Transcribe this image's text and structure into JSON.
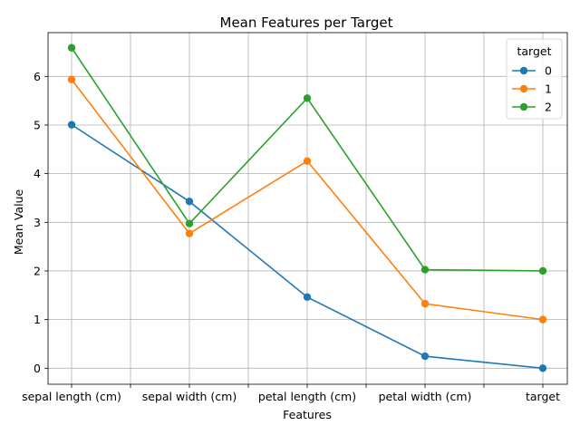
{
  "chart_data": {
    "type": "line",
    "title": "Mean Features per Target",
    "xlabel": "Features",
    "ylabel": "Mean Value",
    "categories": [
      "sepal length (cm)",
      "sepal width (cm)",
      "petal length (cm)",
      "petal width (cm)",
      "target"
    ],
    "ylim": [
      -0.33,
      6.9
    ],
    "yticks": [
      0,
      1,
      2,
      3,
      4,
      5,
      6
    ],
    "grid": true,
    "legend": {
      "title": "target",
      "placement": "top-right"
    },
    "series": [
      {
        "name": "0",
        "color": "#1f77b4",
        "values": [
          5.006,
          3.428,
          1.462,
          0.246,
          0.0
        ]
      },
      {
        "name": "1",
        "color": "#ff7f0e",
        "values": [
          5.936,
          2.77,
          4.26,
          1.326,
          1.0
        ]
      },
      {
        "name": "2",
        "color": "#2ca02c",
        "values": [
          6.588,
          2.974,
          5.552,
          2.026,
          2.0
        ]
      }
    ]
  }
}
